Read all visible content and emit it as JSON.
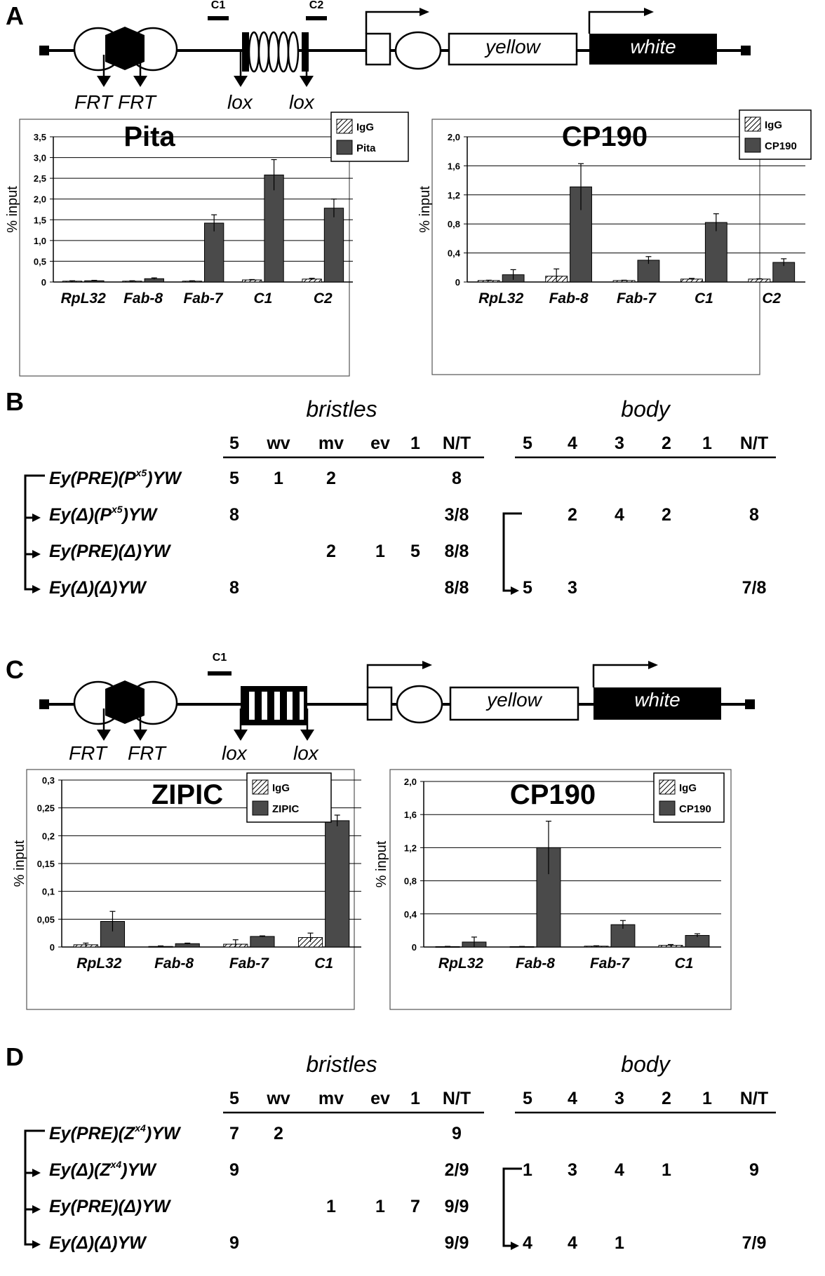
{
  "panels": {
    "A": {
      "letter": "A",
      "construct": {
        "probes": [
          "C1",
          "C2"
        ],
        "genes": [
          "yellow",
          "white"
        ],
        "sites": [
          "FRT",
          "FRT",
          "lox",
          "lox"
        ]
      },
      "charts": [
        {
          "type": "bar",
          "title": "Pita",
          "ylabel": "% input",
          "ylim": [
            0,
            3.5
          ],
          "yticks": [
            "0",
            "0,5",
            "1,0",
            "1,5",
            "2,0",
            "2,5",
            "3,0",
            "3,5"
          ],
          "categories": [
            "RpL32",
            "Fab-8",
            "Fab-7",
            "C1",
            "C2"
          ],
          "series": [
            {
              "name": "IgG",
              "values": [
                0.02,
                0.02,
                0.02,
                0.05,
                0.07
              ],
              "errors": [
                0.01,
                0.01,
                0.01,
                0.01,
                0.02
              ]
            },
            {
              "name": "Pita",
              "values": [
                0.03,
                0.08,
                1.42,
                2.58,
                1.78
              ],
              "errors": [
                0.01,
                0.02,
                0.2,
                0.37,
                0.22
              ]
            }
          ],
          "legend": [
            "IgG",
            "Pita"
          ]
        },
        {
          "type": "bar",
          "title": "CP190",
          "ylabel": "% input",
          "ylim": [
            0,
            2.0
          ],
          "yticks": [
            "0",
            "0,4",
            "0,8",
            "1,2",
            "1,6",
            "2,0"
          ],
          "categories": [
            "RpL32",
            "Fab-8",
            "Fab-7",
            "C1",
            "C2"
          ],
          "series": [
            {
              "name": "IgG",
              "values": [
                0.02,
                0.08,
                0.02,
                0.04,
                0.04
              ],
              "errors": [
                0.005,
                0.1,
                0.005,
                0.01,
                0.005
              ]
            },
            {
              "name": "CP190",
              "values": [
                0.1,
                1.31,
                0.3,
                0.82,
                0.27
              ],
              "errors": [
                0.07,
                0.32,
                0.05,
                0.12,
                0.05
              ]
            }
          ],
          "legend": [
            "IgG",
            "CP190"
          ]
        }
      ]
    },
    "B": {
      "letter": "B",
      "bristles_label": "bristles",
      "body_label": "body",
      "bristle_cols": [
        "5",
        "wv",
        "mv",
        "ev",
        "1",
        "N/T"
      ],
      "body_cols": [
        "5",
        "4",
        "3",
        "2",
        "1",
        "N/T"
      ],
      "rows": [
        {
          "pre": "Ey(PRE)(P",
          "sup": "x5",
          "post": ")YW",
          "bristles": [
            "5",
            "1",
            "2",
            "",
            "",
            "8"
          ],
          "body": [
            "",
            "",
            "",
            "",
            "",
            ""
          ]
        },
        {
          "pre": "Ey(Δ)(P",
          "sup": "x5",
          "post": ")YW",
          "bristles": [
            "8",
            "",
            "",
            "",
            "",
            "3/8"
          ],
          "body": [
            "",
            "2",
            "4",
            "2",
            "",
            "8"
          ]
        },
        {
          "pre": "Ey(PRE)(Δ)YW",
          "sup": "",
          "post": "",
          "bristles": [
            "",
            "",
            "2",
            "1",
            "5",
            "8/8"
          ],
          "body": [
            "",
            "",
            "",
            "",
            "",
            ""
          ]
        },
        {
          "pre": "Ey(Δ)(Δ)YW",
          "sup": "",
          "post": "",
          "bristles": [
            "8",
            "",
            "",
            "",
            "",
            "8/8"
          ],
          "body": [
            "5",
            "3",
            "",
            "",
            "",
            "7/8"
          ]
        }
      ]
    },
    "C": {
      "letter": "C",
      "construct": {
        "probes": [
          "C1"
        ],
        "genes": [
          "yellow",
          "white"
        ],
        "sites": [
          "FRT",
          "FRT",
          "lox",
          "lox"
        ]
      },
      "charts": [
        {
          "type": "bar",
          "title": "ZIPIC",
          "ylabel": "% input",
          "ylim": [
            0,
            0.3
          ],
          "yticks": [
            "0",
            "0,05",
            "0,1",
            "0,15",
            "0,2",
            "0,25",
            "0,3"
          ],
          "categories": [
            "RpL32",
            "Fab-8",
            "Fab-7",
            "C1"
          ],
          "series": [
            {
              "name": "IgG",
              "values": [
                0.004,
                0.001,
                0.005,
                0.017
              ],
              "errors": [
                0.003,
                0.001,
                0.008,
                0.008
              ]
            },
            {
              "name": "ZIPIC",
              "values": [
                0.046,
                0.006,
                0.019,
                0.227
              ],
              "errors": [
                0.018,
                0.001,
                0.001,
                0.01
              ]
            }
          ],
          "legend": [
            "IgG",
            "ZIPIC"
          ]
        },
        {
          "type": "bar",
          "title": "CP190",
          "ylabel": "% input",
          "ylim": [
            0,
            2.0
          ],
          "yticks": [
            "0",
            "0,4",
            "0,8",
            "1,2",
            "1,6",
            "2,0"
          ],
          "categories": [
            "RpL32",
            "Fab-8",
            "Fab-7",
            "C1"
          ],
          "series": [
            {
              "name": "IgG",
              "values": [
                0.005,
                0.005,
                0.01,
                0.02
              ],
              "errors": [
                0.003,
                0.002,
                0.005,
                0.01
              ]
            },
            {
              "name": "CP190",
              "values": [
                0.06,
                1.2,
                0.27,
                0.14
              ],
              "errors": [
                0.06,
                0.32,
                0.05,
                0.02
              ]
            }
          ],
          "legend": [
            "IgG",
            "CP190"
          ]
        }
      ]
    },
    "D": {
      "letter": "D",
      "bristles_label": "bristles",
      "body_label": "body",
      "bristle_cols": [
        "5",
        "wv",
        "mv",
        "ev",
        "1",
        "N/T"
      ],
      "body_cols": [
        "5",
        "4",
        "3",
        "2",
        "1",
        "N/T"
      ],
      "rows": [
        {
          "pre": "Ey(PRE)(Z",
          "sup": "x4",
          "post": ")YW",
          "bristles": [
            "7",
            "2",
            "",
            "",
            "",
            "9"
          ],
          "body": [
            "",
            "",
            "",
            "",
            "",
            ""
          ]
        },
        {
          "pre": "Ey(Δ)(Z",
          "sup": "x4",
          "post": ")YW",
          "bristles": [
            "9",
            "",
            "",
            "",
            "",
            "2/9"
          ],
          "body": [
            "1",
            "3",
            "4",
            "1",
            "",
            "9"
          ]
        },
        {
          "pre": "Ey(PRE)(Δ)YW",
          "sup": "",
          "post": "",
          "bristles": [
            "",
            "",
            "1",
            "1",
            "7",
            "9/9"
          ],
          "body": [
            "",
            "",
            "",
            "",
            "",
            ""
          ]
        },
        {
          "pre": "Ey(Δ)(Δ)YW",
          "sup": "",
          "post": "",
          "bristles": [
            "9",
            "",
            "",
            "",
            "",
            "9/9"
          ],
          "body": [
            "4",
            "4",
            "1",
            "",
            "",
            "7/9"
          ]
        }
      ]
    }
  }
}
